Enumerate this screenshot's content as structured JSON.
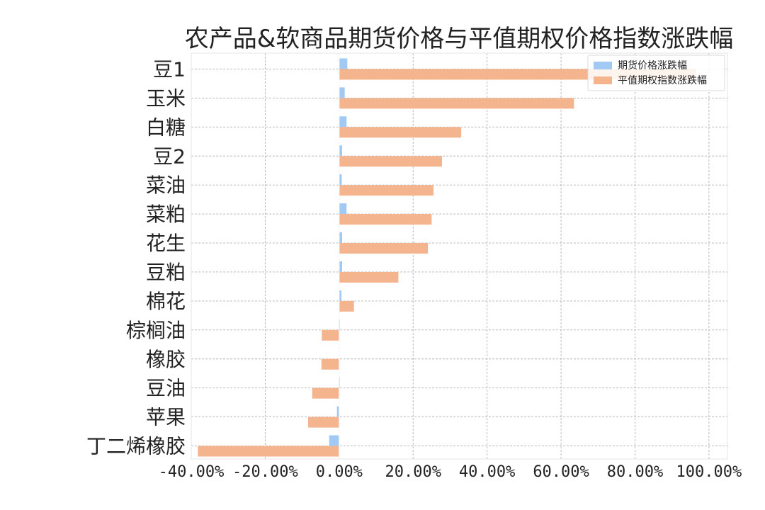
{
  "chart_data": {
    "type": "bar",
    "orientation": "horizontal",
    "title": "农产品&软商品期货价格与平值期权价格指数涨跌幅",
    "categories": [
      "豆1",
      "玉米",
      "白糖",
      "豆2",
      "菜油",
      "菜粕",
      "花生",
      "豆粕",
      "棉花",
      "棕榈油",
      "橡胶",
      "豆油",
      "苹果",
      "丁二烯橡胶"
    ],
    "series": [
      {
        "name": "期货价格涨跌幅",
        "color": "#a1c9f4",
        "values": [
          0.022,
          0.015,
          0.02,
          0.008,
          0.007,
          0.02,
          0.008,
          0.008,
          0.006,
          -0.001,
          0.0,
          -0.001,
          -0.006,
          -0.027
        ]
      },
      {
        "name": "平值期权指数涨跌幅",
        "color": "#f4b48d",
        "values": [
          0.965,
          0.635,
          0.33,
          0.278,
          0.255,
          0.25,
          0.24,
          0.16,
          0.04,
          -0.047,
          -0.048,
          -0.073,
          -0.084,
          -0.382
        ]
      }
    ],
    "x_ticks": [
      "-40.00%",
      "-20.00%",
      "0.00%",
      "20.00%",
      "40.00%",
      "60.00%",
      "80.00%",
      "100.00%"
    ],
    "xlim": [
      -0.4,
      1.05
    ],
    "grid": true,
    "legend_position": "upper-right"
  }
}
